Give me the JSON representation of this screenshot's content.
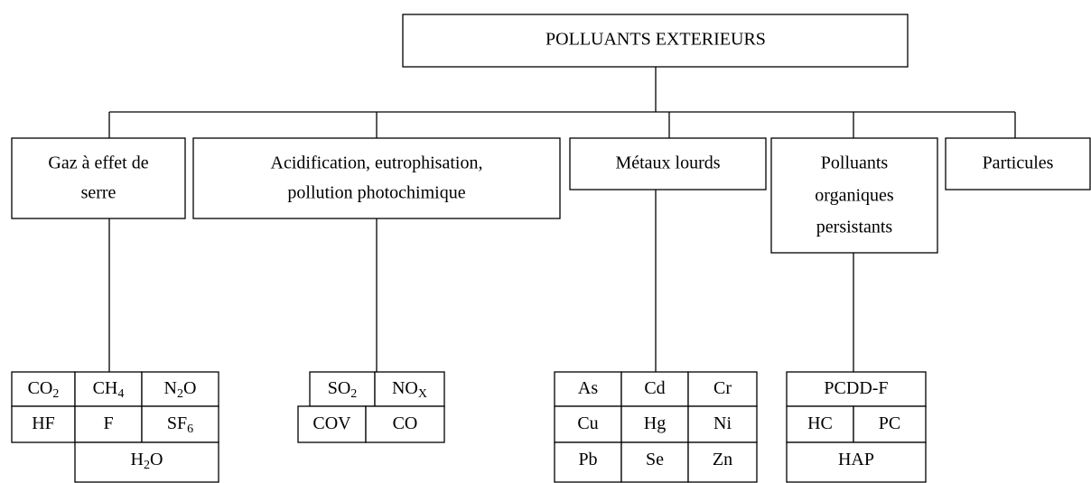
{
  "root": {
    "label": "POLLUANTS EXTERIEURS"
  },
  "categories": [
    {
      "lines": [
        "Gaz à effet de",
        "serre"
      ],
      "cells": [
        {
          "text": "CO",
          "sub": "2"
        },
        {
          "text": "CH",
          "sub": "4"
        },
        {
          "text": "N",
          "sub": "2",
          "after": "O"
        },
        {
          "text": "HF"
        },
        {
          "text": "F"
        },
        {
          "text": "SF",
          "sub": "6"
        },
        {
          "text": "H",
          "sub": "2",
          "after": "O"
        }
      ]
    },
    {
      "lines": [
        "Acidification, eutrophisation,",
        "pollution photochimique"
      ],
      "cells": [
        {
          "text": "SO",
          "sub": "2"
        },
        {
          "text": "NO",
          "sub": "X"
        },
        {
          "text": "COV"
        },
        {
          "text": "CO"
        }
      ]
    },
    {
      "lines": [
        "Métaux lourds"
      ],
      "cells": [
        {
          "text": "As"
        },
        {
          "text": "Cd"
        },
        {
          "text": "Cr"
        },
        {
          "text": "Cu"
        },
        {
          "text": "Hg"
        },
        {
          "text": "Ni"
        },
        {
          "text": "Pb"
        },
        {
          "text": "Se"
        },
        {
          "text": "Zn"
        }
      ]
    },
    {
      "lines": [
        "Polluants",
        "organiques",
        "persistants"
      ],
      "cells": [
        {
          "text": "PCDD-F"
        },
        {
          "text": "HC"
        },
        {
          "text": "PC"
        },
        {
          "text": "HAP"
        }
      ]
    },
    {
      "lines": [
        "Particules"
      ],
      "cells": []
    }
  ]
}
